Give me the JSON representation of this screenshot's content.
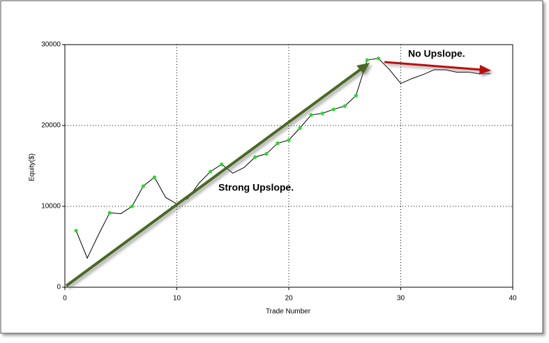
{
  "chart_data": {
    "type": "line",
    "xlabel": "Trade Number",
    "ylabel": "Equity($)",
    "x": [
      1,
      2,
      3,
      4,
      5,
      6,
      7,
      8,
      9,
      10,
      11,
      12,
      13,
      14,
      15,
      16,
      17,
      18,
      19,
      20,
      21,
      22,
      23,
      24,
      25,
      26,
      27,
      28,
      29,
      30,
      31,
      32,
      33,
      34,
      35,
      36,
      37,
      38
    ],
    "series": [
      {
        "color": "#000000",
        "values": [
          7000,
          3600,
          6500,
          9200,
          9100,
          10000,
          12500,
          13600,
          11100,
          10300,
          11000,
          12900,
          14300,
          15200,
          14100,
          14800,
          16100,
          16500,
          17800,
          18200,
          19700,
          21300,
          21500,
          22000,
          22400,
          23700,
          28100,
          28300,
          26900,
          25200,
          25800,
          26300,
          26900,
          26900,
          26600,
          26600,
          26400,
          26400
        ]
      },
      {
        "color": "#22dd22",
        "values": [
          7000,
          null,
          null,
          9200,
          null,
          10000,
          12500,
          13600,
          null,
          null,
          null,
          null,
          14300,
          15200,
          null,
          null,
          16100,
          16500,
          17800,
          18200,
          19700,
          21300,
          21500,
          22000,
          22400,
          23700,
          28100,
          28300,
          null,
          null,
          null,
          null,
          null,
          null,
          null,
          null,
          null,
          null
        ]
      }
    ],
    "xlim": [
      0,
      40
    ],
    "xticks": [
      0,
      10,
      20,
      30,
      40
    ],
    "ylim": [
      0,
      30000
    ],
    "yticks": [
      0,
      10000,
      20000,
      30000
    ],
    "grid": true,
    "annotations": [
      "Strong Upslope.",
      "No Upslope."
    ]
  }
}
